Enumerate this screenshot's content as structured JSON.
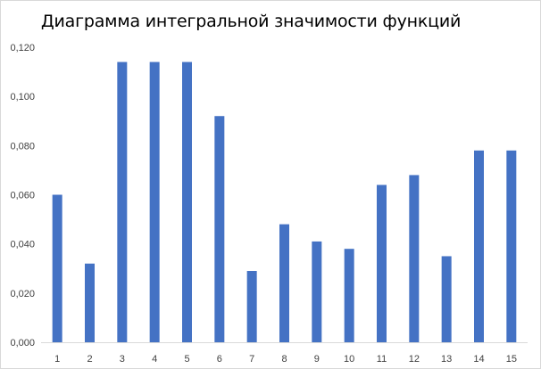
{
  "chart_data": {
    "type": "bar",
    "title": "Диаграмма интегральной значимости функций",
    "xlabel": "",
    "ylabel": "",
    "categories": [
      "1",
      "2",
      "3",
      "4",
      "5",
      "6",
      "7",
      "8",
      "9",
      "10",
      "11",
      "12",
      "13",
      "14",
      "15"
    ],
    "values": [
      0.06,
      0.032,
      0.114,
      0.114,
      0.114,
      0.092,
      0.029,
      0.048,
      0.041,
      0.038,
      0.064,
      0.068,
      0.035,
      0.078,
      0.078
    ],
    "ylim": [
      0,
      0.12
    ],
    "yticks": [
      "0,000",
      "0,020",
      "0,040",
      "0,060",
      "0,080",
      "0,100",
      "0,120"
    ],
    "grid": false,
    "legend": "none",
    "colors": {
      "bar": "#4472C4",
      "axis": "#d9d9d9",
      "text": "#404040"
    }
  }
}
